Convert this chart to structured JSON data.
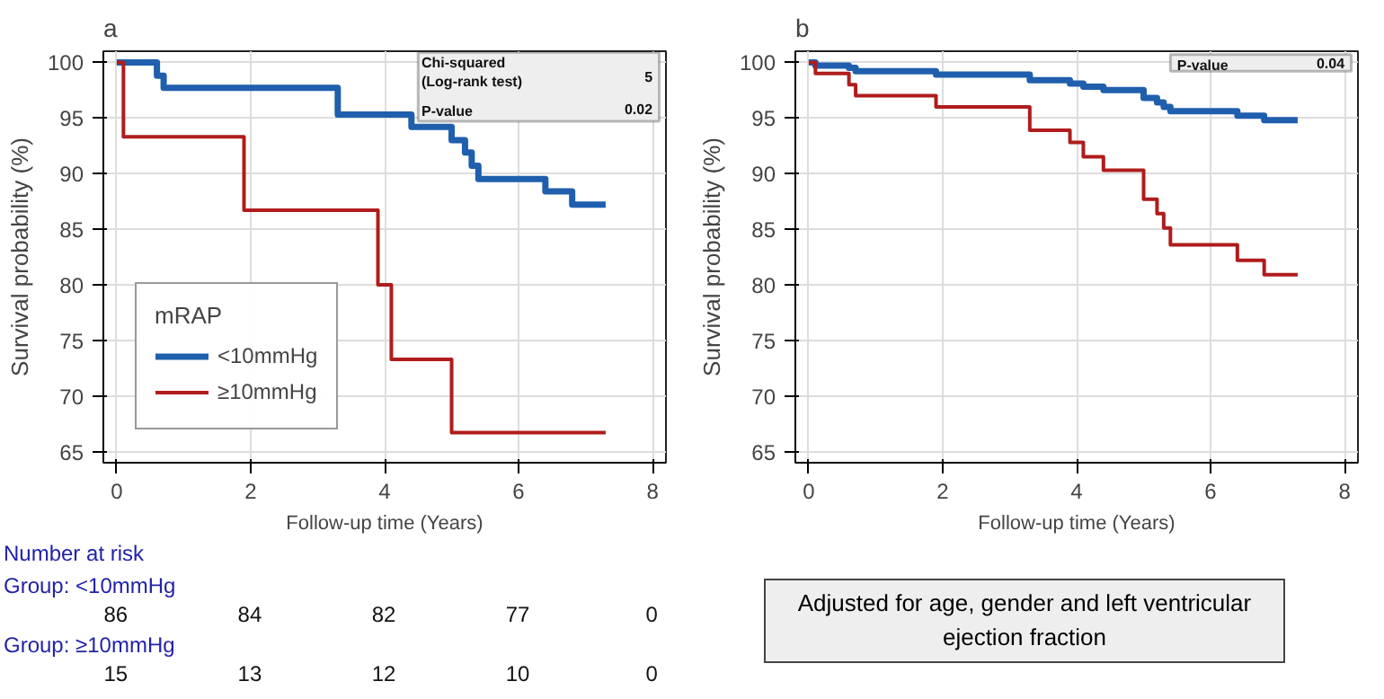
{
  "chart_data": [
    {
      "type": "step",
      "title": "a",
      "xlabel": "Follow-up time (Years)",
      "ylabel": "Survival probability (%)",
      "legend_title": "mRAP",
      "series": [
        {
          "name": "<10mmHg",
          "color": "#1f5fad",
          "x": [
            0,
            0.6,
            0.7,
            3.3,
            4.4,
            5.0,
            5.2,
            5.3,
            5.4,
            6.4,
            6.8,
            7.3
          ],
          "values": [
            100,
            98.8,
            97.7,
            95.3,
            94.2,
            93.0,
            91.9,
            90.7,
            89.5,
            88.4,
            87.2,
            87.2
          ]
        },
        {
          "name": "≥10mmHg",
          "color": "#b01c1c",
          "x": [
            0,
            0.1,
            1.9,
            3.9,
            4.1,
            5.0,
            7.3
          ],
          "values": [
            100,
            93.3,
            86.7,
            80.0,
            73.3,
            66.7,
            66.7
          ]
        }
      ],
      "xlim": [
        -0.2,
        8.2
      ],
      "ylim": [
        64,
        101
      ],
      "xticks": [
        0,
        2,
        4,
        6,
        8
      ],
      "yticks": [
        65,
        70,
        75,
        80,
        85,
        90,
        95,
        100
      ],
      "grid": true,
      "legend": "bottom left",
      "annotations": [
        "Chi-squared\n(Log-rank test)",
        "5",
        "P-value",
        "0.02",
        "Number at risk",
        "Group: <10mmHg",
        "86",
        "84",
        "82",
        "77",
        "0",
        "Group: ≥10mmHg",
        "15",
        "13",
        "12",
        "10",
        "0"
      ]
    },
    {
      "type": "step",
      "title": "b",
      "xlabel": "Follow-up time (Years)",
      "ylabel": "Survival probability (%)",
      "series": [
        {
          "color": "#1f5fad",
          "x": [
            0,
            0.1,
            0.6,
            0.7,
            1.9,
            3.3,
            3.9,
            4.1,
            4.4,
            5.0,
            5.2,
            5.3,
            5.4,
            6.4,
            6.8,
            7.3
          ],
          "values": [
            100,
            99.7,
            99.5,
            99.2,
            98.9,
            98.4,
            98.1,
            97.8,
            97.5,
            96.8,
            96.4,
            96.0,
            95.6,
            95.2,
            94.8,
            94.8
          ]
        },
        {
          "color": "#b01c1c",
          "x": [
            0,
            0.1,
            0.6,
            0.7,
            1.9,
            3.3,
            3.9,
            4.1,
            4.4,
            5.0,
            5.2,
            5.3,
            5.4,
            6.4,
            6.8,
            7.3
          ],
          "values": [
            100,
            99.0,
            98.0,
            97.0,
            96.0,
            93.9,
            92.8,
            91.5,
            90.3,
            87.7,
            86.4,
            85.1,
            83.6,
            82.2,
            80.9,
            80.9
          ]
        }
      ],
      "xlim": [
        -0.2,
        8.2
      ],
      "ylim": [
        64,
        101
      ],
      "xticks": [
        0,
        2,
        4,
        6,
        8
      ],
      "yticks": [
        65,
        70,
        75,
        80,
        85,
        90,
        95,
        100
      ],
      "grid": true,
      "annotations": [
        "P-value",
        "0.04",
        "Adjusted for age, gender and left ventricular ejection fraction"
      ]
    }
  ]
}
